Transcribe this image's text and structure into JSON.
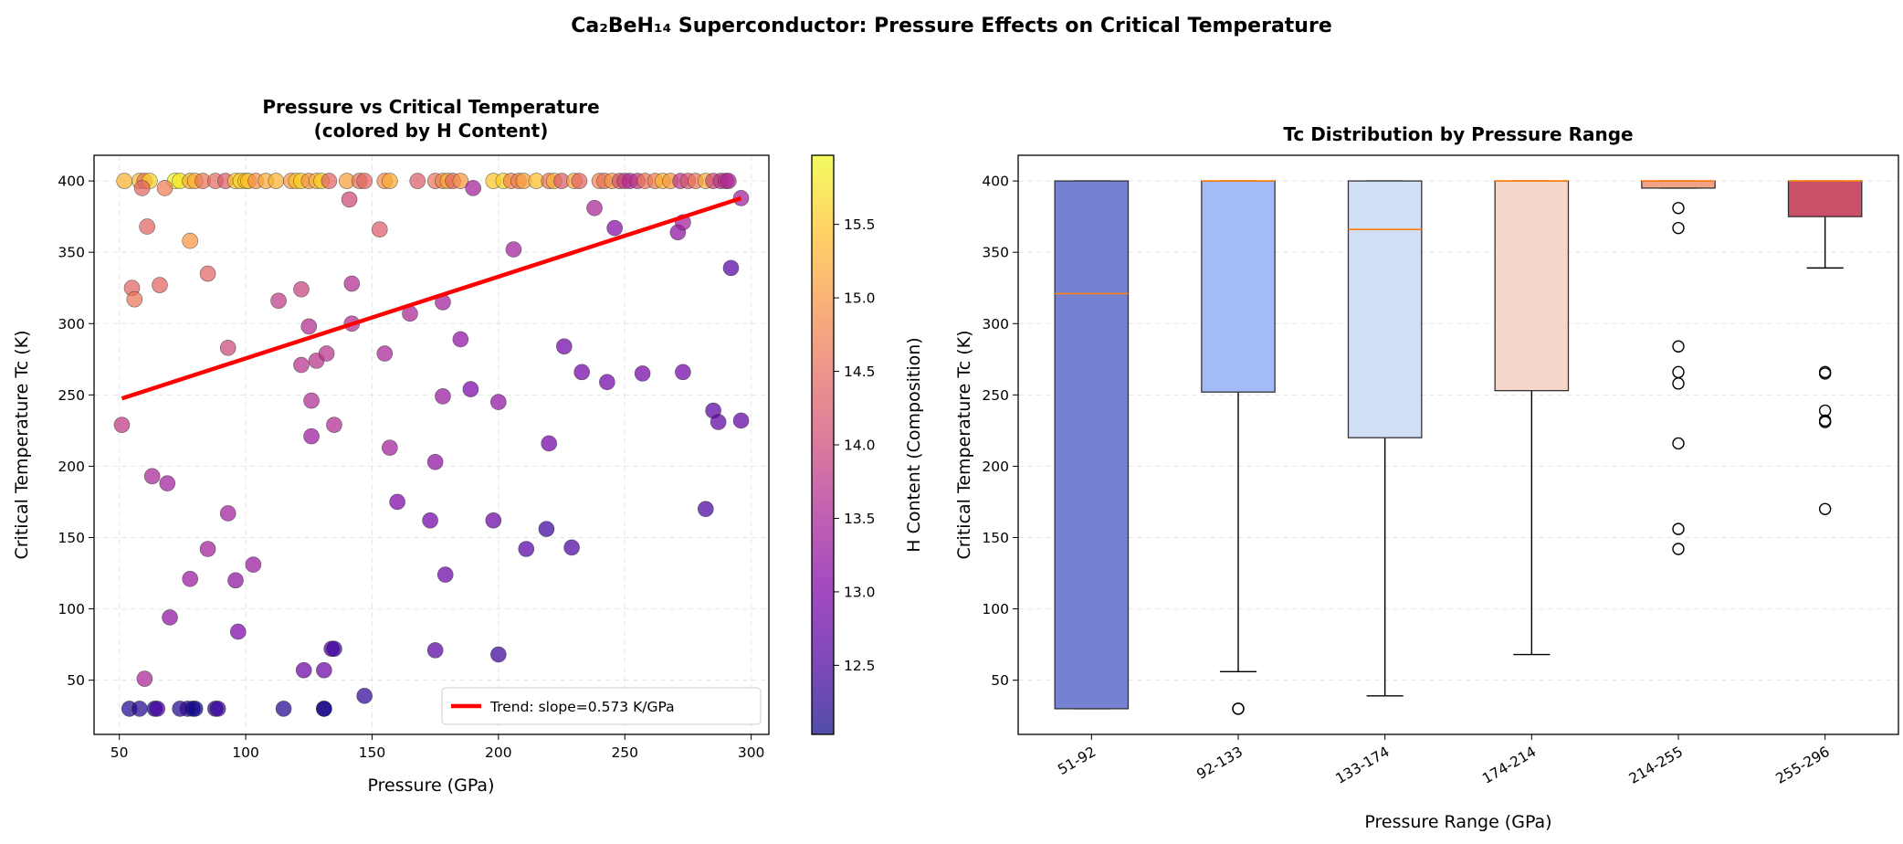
{
  "figure_title": "Ca₂BeH₁₄ Superconductor: Pressure Effects on Critical Temperature",
  "chart_data": [
    {
      "type": "scatter",
      "title_line1": "Pressure vs Critical Temperature",
      "title_line2": "(colored by H Content)",
      "xlabel": "Pressure (GPa)",
      "ylabel": "Critical Temperature Tc (K)",
      "xlim": [
        40,
        307
      ],
      "ylim": [
        12,
        418
      ],
      "xticks": [
        50,
        100,
        150,
        200,
        250,
        300
      ],
      "yticks": [
        50,
        100,
        150,
        200,
        250,
        300,
        350,
        400
      ],
      "grid": true,
      "colormap": "plasma",
      "colorbar": {
        "label": "H Content (Composition)",
        "range": [
          12.03,
          15.97
        ],
        "ticks": [
          12.5,
          13.0,
          13.5,
          14.0,
          14.5,
          15.0,
          15.5
        ]
      },
      "points": [
        [
          52,
          400,
          15.3
        ],
        [
          58,
          400,
          15.4
        ],
        [
          60,
          400,
          14.6
        ],
        [
          62,
          400,
          15.6
        ],
        [
          72,
          400,
          15.9
        ],
        [
          74,
          400,
          15.8
        ],
        [
          78,
          400,
          15.2
        ],
        [
          80,
          400,
          15.3
        ],
        [
          83,
          400,
          14.6
        ],
        [
          88,
          400,
          14.5
        ],
        [
          92,
          400,
          14.3
        ],
        [
          96,
          400,
          15.5
        ],
        [
          98,
          400,
          15.6
        ],
        [
          100,
          400,
          15.5
        ],
        [
          101,
          400,
          15.4
        ],
        [
          104,
          400,
          14.9
        ],
        [
          108,
          400,
          15.2
        ],
        [
          112,
          400,
          15.3
        ],
        [
          118,
          400,
          15.0
        ],
        [
          120,
          400,
          15.4
        ],
        [
          122,
          400,
          15.6
        ],
        [
          125,
          400,
          14.9
        ],
        [
          128,
          400,
          15.3
        ],
        [
          130,
          400,
          15.6
        ],
        [
          133,
          400,
          14.4
        ],
        [
          140,
          400,
          15.1
        ],
        [
          145,
          400,
          14.6
        ],
        [
          147,
          400,
          14.4
        ],
        [
          155,
          400,
          14.9
        ],
        [
          157,
          400,
          15.2
        ],
        [
          168,
          400,
          14.3
        ],
        [
          175,
          400,
          14.6
        ],
        [
          178,
          400,
          14.8
        ],
        [
          180,
          400,
          15.3
        ],
        [
          182,
          400,
          14.4
        ],
        [
          185,
          400,
          15.0
        ],
        [
          198,
          400,
          15.5
        ],
        [
          202,
          400,
          15.6
        ],
        [
          205,
          400,
          14.8
        ],
        [
          208,
          400,
          14.7
        ],
        [
          210,
          400,
          15.1
        ],
        [
          215,
          400,
          15.4
        ],
        [
          220,
          400,
          14.6
        ],
        [
          222,
          400,
          15.3
        ],
        [
          225,
          400,
          14.3
        ],
        [
          230,
          400,
          15.2
        ],
        [
          232,
          400,
          14.4
        ],
        [
          240,
          400,
          14.8
        ],
        [
          242,
          400,
          14.6
        ],
        [
          245,
          400,
          15.0
        ],
        [
          248,
          400,
          14.2
        ],
        [
          250,
          400,
          13.9
        ],
        [
          252,
          400,
          13.6
        ],
        [
          255,
          400,
          13.8
        ],
        [
          258,
          400,
          14.6
        ],
        [
          262,
          400,
          14.7
        ],
        [
          265,
          400,
          15.3
        ],
        [
          268,
          400,
          15.0
        ],
        [
          272,
          400,
          13.8
        ],
        [
          275,
          400,
          14.2
        ],
        [
          278,
          400,
          14.6
        ],
        [
          282,
          400,
          15.2
        ],
        [
          285,
          400,
          14.0
        ],
        [
          288,
          400,
          13.7
        ],
        [
          290,
          400,
          13.8
        ],
        [
          291,
          400,
          13.5
        ],
        [
          51,
          229,
          13.8
        ],
        [
          55,
          325,
          14.4
        ],
        [
          56,
          317,
          14.6
        ],
        [
          61,
          368,
          14.4
        ],
        [
          59,
          395,
          14.4
        ],
        [
          68,
          395,
          14.7
        ],
        [
          66,
          327,
          14.4
        ],
        [
          78,
          358,
          15.0
        ],
        [
          85,
          335,
          14.4
        ],
        [
          60,
          51,
          13.5
        ],
        [
          63,
          193,
          13.5
        ],
        [
          69,
          188,
          13.4
        ],
        [
          70,
          94,
          13.2
        ],
        [
          78,
          121,
          13.3
        ],
        [
          85,
          142,
          13.4
        ],
        [
          93,
          167,
          13.4
        ],
        [
          96,
          120,
          13.2
        ],
        [
          97,
          84,
          13.0
        ],
        [
          103,
          131,
          13.3
        ],
        [
          93,
          283,
          14.0
        ],
        [
          113,
          316,
          13.8
        ],
        [
          122,
          271,
          13.7
        ],
        [
          122,
          324,
          13.9
        ],
        [
          125,
          298,
          13.6
        ],
        [
          126,
          246,
          13.6
        ],
        [
          126,
          221,
          13.3
        ],
        [
          128,
          274,
          13.7
        ],
        [
          132,
          279,
          13.7
        ],
        [
          135,
          229,
          13.6
        ],
        [
          141,
          387,
          14.0
        ],
        [
          142,
          328,
          13.6
        ],
        [
          142,
          300,
          13.6
        ],
        [
          153,
          366,
          14.3
        ],
        [
          155,
          279,
          13.5
        ],
        [
          157,
          213,
          13.4
        ],
        [
          160,
          175,
          13.0
        ],
        [
          165,
          307,
          13.5
        ],
        [
          173,
          162,
          12.9
        ],
        [
          175,
          203,
          13.2
        ],
        [
          178,
          249,
          13.3
        ],
        [
          178,
          315,
          13.4
        ],
        [
          179,
          124,
          12.8
        ],
        [
          185,
          289,
          13.2
        ],
        [
          189,
          254,
          13.0
        ],
        [
          190,
          395,
          13.4
        ],
        [
          198,
          162,
          12.8
        ],
        [
          200,
          245,
          13.2
        ],
        [
          206,
          352,
          13.4
        ],
        [
          211,
          142,
          12.6
        ],
        [
          219,
          156,
          12.4
        ],
        [
          220,
          216,
          12.9
        ],
        [
          226,
          284,
          12.9
        ],
        [
          229,
          143,
          12.5
        ],
        [
          233,
          266,
          12.9
        ],
        [
          238,
          381,
          13.5
        ],
        [
          243,
          259,
          12.9
        ],
        [
          246,
          367,
          13.1
        ],
        [
          257,
          265,
          12.9
        ],
        [
          271,
          364,
          13.2
        ],
        [
          273,
          266,
          12.9
        ],
        [
          273,
          371,
          13.4
        ],
        [
          282,
          170,
          12.5
        ],
        [
          285,
          239,
          12.6
        ],
        [
          287,
          231,
          12.7
        ],
        [
          292,
          339,
          12.6
        ],
        [
          296,
          232,
          12.7
        ],
        [
          296,
          388,
          13.4
        ],
        [
          123,
          57,
          12.8
        ],
        [
          131,
          57,
          12.8
        ],
        [
          134,
          72,
          12.6
        ],
        [
          135,
          72,
          12.4
        ],
        [
          147,
          39,
          12.3
        ],
        [
          175,
          71,
          12.6
        ],
        [
          200,
          68,
          12.4
        ],
        [
          54,
          30,
          12.2
        ],
        [
          58,
          30,
          12.2
        ],
        [
          64,
          30,
          12.1
        ],
        [
          65,
          30,
          12.5
        ],
        [
          74,
          30,
          12.2
        ],
        [
          77,
          30,
          12.3
        ],
        [
          79,
          30,
          12.1
        ],
        [
          80,
          30,
          12.05
        ],
        [
          88,
          30,
          12.2
        ],
        [
          89,
          30,
          12.4
        ],
        [
          115,
          30,
          12.2
        ],
        [
          131,
          30,
          12.05
        ],
        [
          131,
          30,
          12.1
        ]
      ],
      "trend": {
        "slope": 0.573,
        "intercept": 218.3,
        "x_range": [
          51,
          296
        ],
        "color": "#ff0000",
        "legend": "Trend: slope=0.573 K/GPa",
        "legend_position": "lower right"
      }
    },
    {
      "type": "box",
      "title": "Tc Distribution by Pressure Range",
      "xlabel": "Pressure Range (GPa)",
      "ylabel": "Critical Temperature Tc (K)",
      "ylim": [
        12,
        418
      ],
      "yticks": [
        50,
        100,
        150,
        200,
        250,
        300,
        350,
        400
      ],
      "grid": "y",
      "categories": [
        "51-92",
        "92-133",
        "133-174",
        "174-214",
        "214-255",
        "255-296"
      ],
      "boxes": [
        {
          "whislo": 30,
          "q1": 30,
          "med": 321,
          "q3": 400,
          "whishi": 400,
          "fliers": [],
          "color": "#7582d3"
        },
        {
          "whislo": 56,
          "q1": 252,
          "med": 400,
          "q3": 400,
          "whishi": 400,
          "fliers": [
            30,
            30
          ],
          "color": "#a3bcf8"
        },
        {
          "whislo": 39,
          "q1": 220,
          "med": 366,
          "q3": 400,
          "whishi": 400,
          "fliers": [],
          "color": "#d1dff5"
        },
        {
          "whislo": 68,
          "q1": 253,
          "med": 400,
          "q3": 400,
          "whishi": 400,
          "fliers": [],
          "color": "#f4d7c9"
        },
        {
          "whislo": 395,
          "q1": 395,
          "med": 400,
          "q3": 400,
          "whishi": 400,
          "fliers": [
            381,
            367,
            284,
            266,
            258,
            216,
            156,
            142
          ],
          "color": "#f2a287"
        },
        {
          "whislo": 339,
          "q1": 375,
          "med": 400,
          "q3": 400,
          "whishi": 400,
          "fliers": [
            266,
            265,
            239,
            232,
            231,
            170
          ],
          "color": "#ca4f69"
        }
      ],
      "median_color": "#ff7f0e"
    }
  ]
}
